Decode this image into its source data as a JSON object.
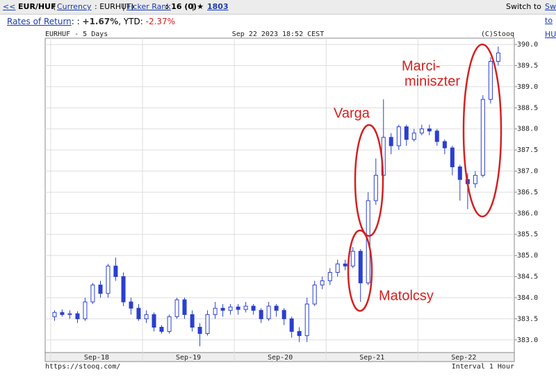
{
  "header": {
    "back": "<<",
    "symbol": "EUR/HUF",
    "currency_link": "Currency",
    "currency_code": ": EURHUF)",
    "rank_link": "Ticker Rank",
    "rank_value": ": 16 (0)",
    "star_count": "1803",
    "switch": "Switch to HUF/"
  },
  "returns": {
    "label": "Rates of Return",
    "sep": ": :",
    "day": "+1.67%",
    "ytd_label": ", YTD:",
    "ytd": "-2.37%"
  },
  "chart_data": {
    "type": "candlestick",
    "title": "EURHUF - 5 Days",
    "subtitle": "Sep 22 2023 18:52 CEST",
    "credit": "(C)Stooq",
    "source": "https://stooq.com/",
    "interval": "Interval 1 Hour",
    "x": [
      0.042,
      0.125,
      0.208,
      0.292,
      0.375,
      0.458,
      0.542,
      0.625,
      0.708,
      0.792,
      0.875,
      0.958,
      1.042,
      1.125,
      1.208,
      1.292,
      1.375,
      1.458,
      1.542,
      1.625,
      1.708,
      1.792,
      1.875,
      1.958,
      2.042,
      2.125,
      2.208,
      2.292,
      2.375,
      2.458,
      2.542,
      2.625,
      2.708,
      2.792,
      2.875,
      2.958,
      3.042,
      3.125,
      3.208,
      3.292,
      3.375,
      3.458,
      3.542,
      3.625,
      3.708,
      3.792,
      3.875,
      3.958,
      4.042,
      4.125,
      4.208,
      4.292,
      4.375,
      4.458,
      4.542,
      4.625,
      4.708,
      4.792,
      4.875
    ],
    "open": [
      383.55,
      383.65,
      383.6,
      383.62,
      383.5,
      383.9,
      384.3,
      384.1,
      384.75,
      384.5,
      383.9,
      383.75,
      383.5,
      383.6,
      383.3,
      383.2,
      383.55,
      383.95,
      383.6,
      383.3,
      383.15,
      383.6,
      383.75,
      383.7,
      383.78,
      383.72,
      383.8,
      383.7,
      383.5,
      383.8,
      383.7,
      383.5,
      383.2,
      383.1,
      383.85,
      384.3,
      384.4,
      384.6,
      384.8,
      384.75,
      385.1,
      384.35,
      386.3,
      386.9,
      387.8,
      387.6,
      388.05,
      387.75,
      387.9,
      388.0,
      387.95,
      387.7,
      387.55,
      387.1,
      386.8,
      386.7,
      386.9,
      388.7,
      389.6
    ],
    "high": [
      383.7,
      383.72,
      383.7,
      383.68,
      384.0,
      384.35,
      384.4,
      384.8,
      384.95,
      384.6,
      384.0,
      383.85,
      383.7,
      383.65,
      383.35,
      383.6,
      384.0,
      384.0,
      383.7,
      383.4,
      383.7,
      383.9,
      383.85,
      383.85,
      383.85,
      383.9,
      383.85,
      383.75,
      383.9,
      383.85,
      383.75,
      383.55,
      383.3,
      384.0,
      384.4,
      384.5,
      384.7,
      384.9,
      384.9,
      385.2,
      385.15,
      386.5,
      387.3,
      388.7,
      387.9,
      388.1,
      388.1,
      388.0,
      388.1,
      388.1,
      388.0,
      387.75,
      387.6,
      387.15,
      386.95,
      387.0,
      388.8,
      389.7,
      389.95
    ],
    "low": [
      383.45,
      383.55,
      383.5,
      383.4,
      383.45,
      383.85,
      384.0,
      384.0,
      384.4,
      383.8,
      383.6,
      383.45,
      383.4,
      383.2,
      383.15,
      383.15,
      383.5,
      383.5,
      383.2,
      382.85,
      383.1,
      383.5,
      383.55,
      383.6,
      383.6,
      383.65,
      383.6,
      383.4,
      383.45,
      383.55,
      383.35,
      383.05,
      382.95,
      382.95,
      383.8,
      384.2,
      384.3,
      384.5,
      384.65,
      384.7,
      383.9,
      384.3,
      386.2,
      386.8,
      387.4,
      387.5,
      387.6,
      387.7,
      387.85,
      387.85,
      387.6,
      387.4,
      386.9,
      386.3,
      386.1,
      386.6,
      386.85,
      388.6,
      389.5
    ],
    "close": [
      383.65,
      383.6,
      383.62,
      383.5,
      383.9,
      384.3,
      384.1,
      384.75,
      384.5,
      383.9,
      383.75,
      383.5,
      383.6,
      383.3,
      383.2,
      383.55,
      383.95,
      383.6,
      383.3,
      383.15,
      383.6,
      383.75,
      383.7,
      383.78,
      383.72,
      383.8,
      383.7,
      383.5,
      383.8,
      383.7,
      383.5,
      383.2,
      383.1,
      383.85,
      384.3,
      384.4,
      384.6,
      384.8,
      384.75,
      385.1,
      384.35,
      386.3,
      386.9,
      387.8,
      387.6,
      388.05,
      387.75,
      387.9,
      388.0,
      387.95,
      387.7,
      387.55,
      387.1,
      386.8,
      386.7,
      386.9,
      388.7,
      389.6,
      389.8
    ],
    "up_color": "#ffffff",
    "down_color": "#2a3fcf",
    "edge_color": "#2a3fcf",
    "xlim": [
      -0.06,
      5.05
    ],
    "ylim": [
      382.7,
      390.15
    ],
    "xticks": [
      {
        "value": 0.5,
        "label": "Sep-18"
      },
      {
        "value": 1.5,
        "label": "Sep-19"
      },
      {
        "value": 2.5,
        "label": "Sep-20"
      },
      {
        "value": 3.5,
        "label": "Sep-21"
      },
      {
        "value": 4.5,
        "label": "Sep-22"
      }
    ],
    "xgrid": [
      0,
      1,
      2,
      3,
      4
    ],
    "yticks": [
      {
        "value": 383,
        "label": "383.0"
      },
      {
        "value": 383.5,
        "label": "383.5"
      },
      {
        "value": 384,
        "label": "384.0"
      },
      {
        "value": 384.5,
        "label": "384.5"
      },
      {
        "value": 385,
        "label": "385.0"
      },
      {
        "value": 385.5,
        "label": "385.5"
      },
      {
        "value": 386,
        "label": "386.0"
      },
      {
        "value": 386.5,
        "label": "386.5"
      },
      {
        "value": 387,
        "label": "387.0"
      },
      {
        "value": 387.5,
        "label": "387.5"
      },
      {
        "value": 388,
        "label": "388.0"
      },
      {
        "value": 388.5,
        "label": "388.5"
      },
      {
        "value": 389,
        "label": "389.0"
      },
      {
        "value": 389.5,
        "label": "389.5"
      },
      {
        "value": 390,
        "label": "390.0"
      }
    ],
    "grid": true,
    "annotations": {
      "varga": "Varga",
      "marci": [
        "Marci-",
        "miniszter"
      ],
      "matolcsy": "Matolcsy"
    }
  }
}
